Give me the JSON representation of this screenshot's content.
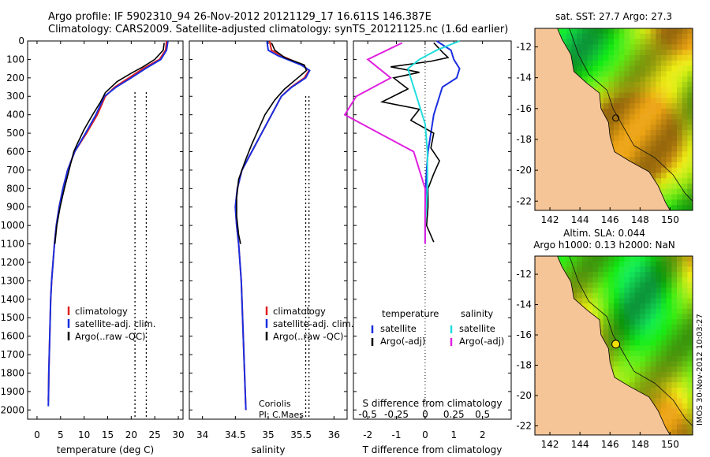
{
  "header": {
    "line1": "Argo profile: IF 5902310_94 26-Nov-2012 20121129_17 16.611S 146.387E",
    "line2": "Climatology: CARS2009. Satellite-adjusted climatology: synTS_20121125.nc (1.6d earlier)"
  },
  "stamp": "IMOS 30-Nov-2012 10:03:27",
  "colors": {
    "climatology": "#e02020",
    "satellite": "#1a2ee0",
    "argo": "#000000",
    "sal_sat": "#22dddd",
    "sal_argo": "#e020e0",
    "land": "#f5c597"
  },
  "chart_data": [
    {
      "type": "line",
      "id": "temperature-panel",
      "xlabel": "temperature (deg C)",
      "xlim": [
        -2,
        31
      ],
      "ylim": [
        2050,
        0
      ],
      "xticks": [
        0,
        5,
        10,
        15,
        20,
        25,
        30
      ],
      "yticks": [
        0,
        100,
        200,
        300,
        400,
        500,
        600,
        700,
        800,
        900,
        1000,
        1100,
        1200,
        1300,
        1400,
        1500,
        1600,
        1700,
        1800,
        1900,
        2000
      ],
      "verticals": [
        20.8,
        23.2
      ],
      "legend": [
        "climatology",
        "satellite-adj. clim.",
        "Argo(..raw -QC)"
      ],
      "series": [
        {
          "name": "climatology",
          "key": "climatology",
          "points": [
            [
              27.5,
              0
            ],
            [
              27.3,
              50
            ],
            [
              26.0,
              100
            ],
            [
              22.5,
              150
            ],
            [
              19.5,
              200
            ],
            [
              16.5,
              250
            ],
            [
              14.5,
              300
            ],
            [
              12.8,
              400
            ],
            [
              10.5,
              500
            ],
            [
              8.0,
              600
            ],
            [
              6.5,
              700
            ],
            [
              5.5,
              800
            ],
            [
              4.7,
              900
            ],
            [
              4.1,
              1000
            ],
            [
              3.7,
              1100
            ],
            [
              3.4,
              1200
            ],
            [
              3.1,
              1300
            ],
            [
              2.9,
              1400
            ],
            [
              2.8,
              1500
            ],
            [
              2.7,
              1600
            ],
            [
              2.6,
              1700
            ],
            [
              2.5,
              1800
            ],
            [
              2.45,
              1900
            ],
            [
              2.4,
              1950
            ]
          ]
        },
        {
          "name": "satellite-adj. clim.",
          "key": "satellite",
          "points": [
            [
              27.8,
              0
            ],
            [
              27.5,
              50
            ],
            [
              26.3,
              100
            ],
            [
              23.0,
              150
            ],
            [
              20.0,
              200
            ],
            [
              16.8,
              250
            ],
            [
              14.3,
              300
            ],
            [
              12.5,
              400
            ],
            [
              10.3,
              500
            ],
            [
              8.0,
              600
            ],
            [
              6.5,
              700
            ],
            [
              5.5,
              800
            ],
            [
              4.7,
              900
            ],
            [
              4.1,
              1000
            ],
            [
              3.7,
              1100
            ],
            [
              3.4,
              1200
            ],
            [
              3.1,
              1300
            ],
            [
              2.9,
              1400
            ],
            [
              2.8,
              1500
            ],
            [
              2.7,
              1600
            ],
            [
              2.6,
              1700
            ],
            [
              2.5,
              1800
            ],
            [
              2.45,
              1900
            ],
            [
              2.4,
              1980
            ]
          ]
        },
        {
          "name": "Argo(..raw -QC)",
          "key": "argo",
          "points": [
            [
              27.0,
              10
            ],
            [
              26.8,
              50
            ],
            [
              25.0,
              100
            ],
            [
              22.5,
              140
            ],
            [
              20.0,
              175
            ],
            [
              17.0,
              220
            ],
            [
              14.5,
              280
            ],
            [
              13.5,
              330
            ],
            [
              11.8,
              400
            ],
            [
              10.0,
              480
            ],
            [
              8.5,
              560
            ],
            [
              7.8,
              600
            ],
            [
              6.8,
              700
            ],
            [
              5.8,
              800
            ],
            [
              4.9,
              900
            ],
            [
              4.2,
              1000
            ],
            [
              3.8,
              1100
            ]
          ]
        }
      ]
    },
    {
      "type": "line",
      "id": "salinity-panel",
      "xlabel": "salinity",
      "xlim": [
        33.8,
        36.2
      ],
      "ylim": [
        2050,
        0
      ],
      "xticks": [
        34,
        34.5,
        35,
        35.5,
        36
      ],
      "verticals": [
        35.57,
        35.62
      ],
      "legend": [
        "climatology",
        "satellite-adj. clim.",
        "Argo(..raw -QC)"
      ],
      "annotation": [
        "Coriolis",
        "PI: C.Maes"
      ],
      "series": [
        {
          "name": "climatology",
          "key": "climatology",
          "points": [
            [
              35.02,
              0
            ],
            [
              35.05,
              50
            ],
            [
              35.2,
              80
            ],
            [
              35.52,
              130
            ],
            [
              35.62,
              160
            ],
            [
              35.55,
              200
            ],
            [
              35.35,
              250
            ],
            [
              35.2,
              300
            ],
            [
              35.05,
              400
            ],
            [
              34.9,
              500
            ],
            [
              34.75,
              600
            ],
            [
              34.6,
              700
            ],
            [
              34.53,
              800
            ],
            [
              34.5,
              900
            ],
            [
              34.52,
              1000
            ],
            [
              34.55,
              1100
            ],
            [
              34.57,
              1200
            ],
            [
              34.59,
              1300
            ],
            [
              34.6,
              1400
            ],
            [
              34.61,
              1500
            ],
            [
              34.62,
              1600
            ],
            [
              34.63,
              1700
            ],
            [
              34.64,
              1800
            ],
            [
              34.65,
              1900
            ],
            [
              34.66,
              2000
            ]
          ]
        },
        {
          "name": "satellite-adj. clim.",
          "key": "satellite",
          "points": [
            [
              34.98,
              0
            ],
            [
              35.0,
              50
            ],
            [
              35.15,
              80
            ],
            [
              35.5,
              130
            ],
            [
              35.63,
              160
            ],
            [
              35.57,
              200
            ],
            [
              35.36,
              250
            ],
            [
              35.2,
              300
            ],
            [
              35.05,
              400
            ],
            [
              34.9,
              500
            ],
            [
              34.75,
              600
            ],
            [
              34.6,
              700
            ],
            [
              34.53,
              800
            ],
            [
              34.5,
              900
            ],
            [
              34.52,
              1000
            ],
            [
              34.55,
              1100
            ],
            [
              34.57,
              1200
            ],
            [
              34.59,
              1300
            ],
            [
              34.6,
              1400
            ],
            [
              34.61,
              1500
            ],
            [
              34.62,
              1600
            ],
            [
              34.63,
              1700
            ],
            [
              34.64,
              1800
            ],
            [
              34.65,
              1900
            ],
            [
              34.66,
              2000
            ]
          ]
        },
        {
          "name": "Argo(..raw -QC)",
          "key": "argo",
          "points": [
            [
              35.05,
              10
            ],
            [
              35.1,
              50
            ],
            [
              35.25,
              90
            ],
            [
              35.55,
              130
            ],
            [
              35.58,
              160
            ],
            [
              35.45,
              200
            ],
            [
              35.25,
              260
            ],
            [
              35.1,
              320
            ],
            [
              34.95,
              400
            ],
            [
              34.85,
              480
            ],
            [
              34.75,
              560
            ],
            [
              34.65,
              650
            ],
            [
              34.55,
              750
            ],
            [
              34.52,
              850
            ],
            [
              34.52,
              950
            ],
            [
              34.55,
              1050
            ],
            [
              34.58,
              1100
            ]
          ]
        }
      ]
    },
    {
      "type": "line",
      "id": "difference-panel",
      "xlabel_top": "S difference from climatology",
      "xlabel": "T difference from climatology",
      "xlim": [
        -2.5,
        3
      ],
      "ylim": [
        2050,
        0
      ],
      "xticks_bottom": [
        -2,
        -1,
        0,
        1,
        2
      ],
      "xticks_top_labels": [
        "-0.5",
        "-0.25",
        "0",
        "0.25",
        "0.5"
      ],
      "xticks_top_values": [
        -0.5,
        -0.25,
        0,
        0.25,
        0.5
      ],
      "legend_titles": [
        "temperature",
        "salinity"
      ],
      "legend": [
        "satellite",
        "Argo(-adj)",
        "satellite",
        "Argo(-adj)"
      ],
      "series": [
        {
          "name": "satellite",
          "key": "satellite",
          "axis": "T",
          "points": [
            [
              0.4,
              0
            ],
            [
              0.9,
              50
            ],
            [
              1.0,
              100
            ],
            [
              1.2,
              150
            ],
            [
              1.1,
              200
            ],
            [
              0.6,
              250
            ],
            [
              0.5,
              300
            ],
            [
              0.3,
              400
            ],
            [
              0.2,
              500
            ],
            [
              0.1,
              600
            ],
            [
              0.05,
              700
            ],
            [
              0.02,
              800
            ],
            [
              0.0,
              900
            ],
            [
              0.0,
              1000
            ],
            [
              0.0,
              1100
            ]
          ]
        },
        {
          "name": "Argo(-adj)",
          "key": "argo",
          "axis": "T",
          "points": [
            [
              0.3,
              10
            ],
            [
              0.6,
              60
            ],
            [
              0.8,
              90
            ],
            [
              0.2,
              110
            ],
            [
              -1.2,
              140
            ],
            [
              -0.2,
              170
            ],
            [
              -1.1,
              200
            ],
            [
              -0.6,
              260
            ],
            [
              -1.5,
              330
            ],
            [
              -0.2,
              370
            ],
            [
              -0.5,
              430
            ],
            [
              0.3,
              500
            ],
            [
              0.2,
              580
            ],
            [
              0.5,
              650
            ],
            [
              0.3,
              720
            ],
            [
              0.1,
              800
            ],
            [
              0.1,
              900
            ],
            [
              0.05,
              1000
            ],
            [
              0.3,
              1090
            ]
          ]
        },
        {
          "name": "satellite",
          "key": "sal_sat",
          "axis": "S",
          "points": [
            [
              0.3,
              0
            ],
            [
              0.1,
              50
            ],
            [
              -0.05,
              100
            ],
            [
              -0.15,
              150
            ],
            [
              -0.1,
              250
            ],
            [
              -0.05,
              350
            ],
            [
              0.0,
              450
            ],
            [
              0.02,
              600
            ],
            [
              0.02,
              800
            ],
            [
              0.0,
              1000
            ],
            [
              0.0,
              1100
            ]
          ]
        },
        {
          "name": "Argo(-adj)",
          "key": "sal_argo",
          "axis": "S",
          "points": [
            [
              -0.2,
              10
            ],
            [
              -0.5,
              100
            ],
            [
              -0.3,
              200
            ],
            [
              -0.6,
              300
            ],
            [
              -0.7,
              400
            ],
            [
              -0.4,
              500
            ],
            [
              -0.1,
              600
            ],
            [
              0.0,
              800
            ],
            [
              0.0,
              1100
            ]
          ]
        }
      ]
    },
    {
      "type": "heatmap",
      "id": "sst-map",
      "title": "sat. SST: 27.7  Argo: 27.3",
      "xticks": [
        142,
        144,
        146,
        148,
        150
      ],
      "yticks": [
        -12,
        -14,
        -16,
        -18,
        -20,
        -22
      ],
      "xlim": [
        141,
        151.5
      ],
      "ylim": [
        -22.6,
        -10.8
      ],
      "float_position": [
        146.387,
        -16.611
      ]
    },
    {
      "type": "heatmap",
      "id": "sla-map",
      "title_line1": "Altim. SLA: 0.044",
      "title_line2": "Argo h1000: 0.13 h2000: NaN",
      "xticks": [
        142,
        144,
        146,
        148,
        150
      ],
      "yticks": [
        -12,
        -14,
        -16,
        -18,
        -20,
        -22
      ],
      "xlim": [
        141,
        151.5
      ],
      "ylim": [
        -22.6,
        -10.8
      ],
      "float_position": [
        146.387,
        -16.611
      ]
    }
  ]
}
